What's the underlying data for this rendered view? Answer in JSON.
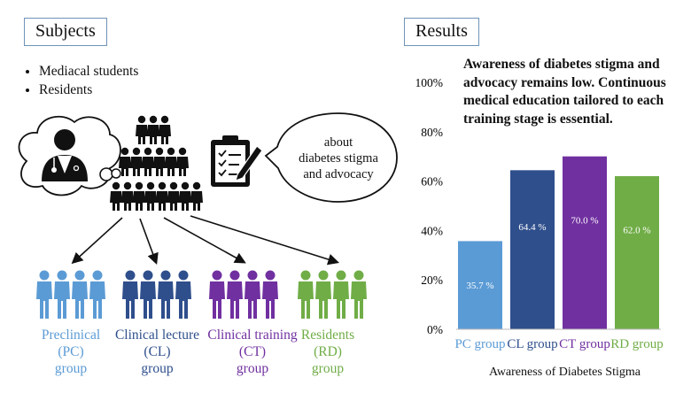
{
  "subjects": {
    "title": "Subjects",
    "bullets": [
      "Mediacal students",
      "Residents"
    ],
    "bubble_text": "about\ndiabetes stigma\nand advocacy",
    "groups": [
      {
        "label": "Preclinical\n(PC)\ngroup",
        "color": "#5b9bd5"
      },
      {
        "label": "Clinical lecture\n(CL)\ngroup",
        "color": "#2f4f8c"
      },
      {
        "label": "Clinical training\n(CT)\ngroup",
        "color": "#7030a0"
      },
      {
        "label": "Residents\n(RD)\ngroup",
        "color": "#70ad47"
      }
    ],
    "icons": [
      "doctor-icon",
      "people-pyramid-icon",
      "clipboard-pencil-icon",
      "arrow-icon"
    ]
  },
  "results": {
    "title": "Results",
    "conclusion": "Awareness of diabetes stigma and advocacy remains low. Continuous medical education tailored to each training stage is essential."
  },
  "chart_data": {
    "type": "bar",
    "categories": [
      "PC group",
      "CL group",
      "CT group",
      "RD group"
    ],
    "values": [
      35.7,
      64.4,
      70.0,
      62.0
    ],
    "value_labels": [
      "35.7 %",
      "64.4 %",
      "70.0 %",
      "62.0 %"
    ],
    "colors": [
      "#5b9bd5",
      "#2f4f8c",
      "#7030a0",
      "#70ad47"
    ],
    "label_colors": [
      "#5b9bd5",
      "#2f4f8c",
      "#7030a0",
      "#70ad47"
    ],
    "xlabel": "Awareness of Diabetes Stigma",
    "ylabel": "",
    "ylim": [
      0,
      100
    ],
    "yticks": [
      "0%",
      "20%",
      "40%",
      "60%",
      "80%",
      "100%"
    ],
    "grid": false
  }
}
